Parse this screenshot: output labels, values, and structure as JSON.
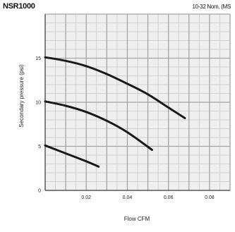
{
  "header": {
    "model": "NSR1000",
    "spec": "10-32 Nom. (MS"
  },
  "chart_data": {
    "type": "line",
    "title": "",
    "xlabel": "Flow CFM",
    "ylabel": "Secondary pressure (psi)",
    "xlim": [
      0,
      0.09
    ],
    "ylim": [
      0,
      20
    ],
    "x_ticks": [
      "0.02",
      "0.04",
      "0.06",
      "0.08"
    ],
    "x_tick_values": [
      0.02,
      0.04,
      0.06,
      0.08
    ],
    "y_ticks": [
      "15",
      "10",
      "5",
      "0"
    ],
    "y_tick_values": [
      15,
      10,
      5,
      0
    ],
    "grid": true,
    "series": [
      {
        "x": [
          0,
          0.01,
          0.02,
          0.03,
          0.04,
          0.05,
          0.06,
          0.068
        ],
        "values": [
          15.1,
          14.7,
          14.1,
          13.2,
          12.1,
          10.9,
          9.4,
          8.2
        ]
      },
      {
        "x": [
          0,
          0.01,
          0.02,
          0.03,
          0.04,
          0.052
        ],
        "values": [
          10.1,
          9.6,
          8.9,
          7.9,
          6.6,
          4.6
        ]
      },
      {
        "x": [
          0,
          0.01,
          0.02,
          0.026
        ],
        "values": [
          5.1,
          4.2,
          3.3,
          2.7
        ]
      }
    ]
  }
}
